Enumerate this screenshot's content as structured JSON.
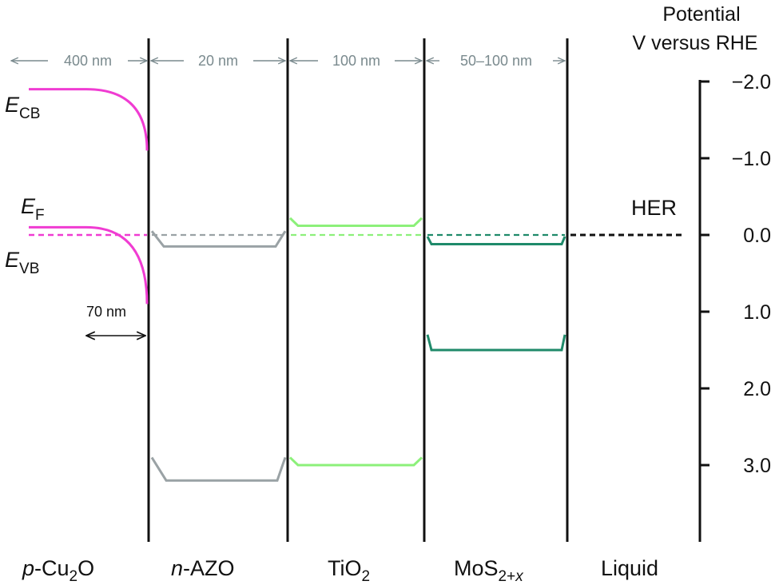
{
  "axis": {
    "title_line1": "Potential",
    "title_line2": "V versus RHE",
    "ticks": [
      {
        "value": -2.0,
        "label": "−2.0"
      },
      {
        "value": -1.0,
        "label": "−1.0"
      },
      {
        "value": 0.0,
        "label": "0.0"
      },
      {
        "value": 1.0,
        "label": "1.0"
      },
      {
        "value": 2.0,
        "label": "2.0"
      },
      {
        "value": 3.0,
        "label": "3.0"
      }
    ]
  },
  "thicknesses": [
    {
      "label": "400 nm",
      "layer": "p-Cu2O"
    },
    {
      "label": "20 nm",
      "layer": "n-AZO"
    },
    {
      "label": "100 nm",
      "layer": "TiO2"
    },
    {
      "label": "50–100 nm",
      "layer": "MoS2+x"
    }
  ],
  "layers": {
    "cu2o": {
      "prefix": "p",
      "dash": "-",
      "base": "Cu",
      "sub": "2",
      "suffix": "O"
    },
    "azo": {
      "prefix": "n",
      "dash": "-",
      "base": "AZO"
    },
    "tio2": {
      "base": "TiO",
      "sub": "2"
    },
    "mos2": {
      "base": "MoS",
      "sub": "2+",
      "subvar": "x"
    },
    "liquid": {
      "base": "Liquid"
    }
  },
  "band_labels": {
    "ecb": {
      "main": "E",
      "sub": "CB"
    },
    "ef": {
      "main": "E",
      "sub": "F"
    },
    "evb": {
      "main": "E",
      "sub": "VB"
    }
  },
  "her_label": "HER",
  "depletion_label": "70 nm",
  "bands": {
    "cu2o": {
      "cb_flat": -1.9,
      "cb_edge": -1.1,
      "vb_flat": -0.1,
      "vb_edge": 0.9,
      "fermi": 0.0
    },
    "azo": {
      "fermi": 0.0,
      "cb": 0.15,
      "cb_edge": -0.05,
      "vb": 3.2,
      "vb_edge": 2.9
    },
    "tio2": {
      "fermi": 0.0,
      "cb": -0.12,
      "cb_edge": -0.22,
      "vb": 3.0,
      "vb_edge": 2.9
    },
    "mos2": {
      "fermi": 0.0,
      "cb": 0.12,
      "cb_edge": 0.02,
      "vb": 1.5,
      "vb_edge": 1.3
    },
    "her": 0.0
  },
  "colors": {
    "cu2o": "#f03cd2",
    "azo": "#9aa2a5",
    "tio2": "#8cf07a",
    "mos2": "#1f8a6a",
    "her": "#111111",
    "thickness": "#7a8a8e",
    "boundary": "#111111"
  }
}
